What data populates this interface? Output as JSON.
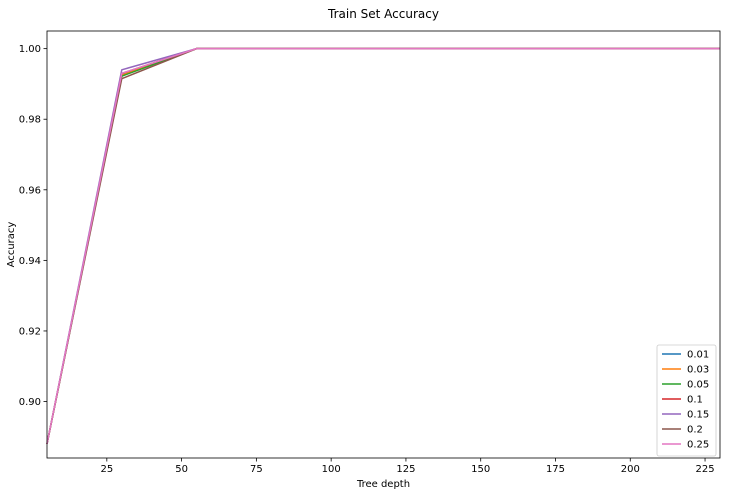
{
  "chart_data": {
    "type": "line",
    "title": "Train Set Accuracy",
    "xlabel": "Tree depth",
    "ylabel": "Accuracy",
    "xlim": [
      5,
      230
    ],
    "ylim": [
      0.884,
      1.005
    ],
    "xticks": [
      25,
      50,
      75,
      100,
      125,
      150,
      175,
      200,
      225
    ],
    "yticks": [
      0.9,
      0.92,
      0.94,
      0.96,
      0.98,
      1.0
    ],
    "ytick_labels": [
      "0.90",
      "0.92",
      "0.94",
      "0.96",
      "0.98",
      "1.00"
    ],
    "grid": false,
    "legend_position": "lower-right",
    "x": [
      5,
      30,
      55,
      80,
      105,
      130,
      155,
      180,
      205,
      230
    ],
    "series": [
      {
        "name": "0.01",
        "color": "#1f77b4",
        "values": [
          0.888,
          0.9928,
          1.0,
          1.0,
          1.0,
          1.0,
          1.0,
          1.0,
          1.0,
          1.0
        ]
      },
      {
        "name": "0.03",
        "color": "#ff7f0e",
        "values": [
          0.888,
          0.9925,
          1.0,
          1.0,
          1.0,
          1.0,
          1.0,
          1.0,
          1.0,
          1.0
        ]
      },
      {
        "name": "0.05",
        "color": "#2ca02c",
        "values": [
          0.888,
          0.9922,
          1.0,
          1.0,
          1.0,
          1.0,
          1.0,
          1.0,
          1.0,
          1.0
        ]
      },
      {
        "name": "0.1",
        "color": "#d62728",
        "values": [
          0.888,
          0.993,
          1.0,
          1.0,
          1.0,
          1.0,
          1.0,
          1.0,
          1.0,
          1.0
        ]
      },
      {
        "name": "0.15",
        "color": "#9467bd",
        "values": [
          0.888,
          0.994,
          1.0,
          1.0,
          1.0,
          1.0,
          1.0,
          1.0,
          1.0,
          1.0
        ]
      },
      {
        "name": "0.2",
        "color": "#8c564b",
        "values": [
          0.888,
          0.9915,
          1.0,
          1.0,
          1.0,
          1.0,
          1.0,
          1.0,
          1.0,
          1.0
        ]
      },
      {
        "name": "0.25",
        "color": "#e377c2",
        "values": [
          0.888,
          0.993,
          1.0,
          1.0,
          1.0,
          1.0,
          1.0,
          1.0,
          1.0,
          1.0
        ]
      }
    ]
  }
}
